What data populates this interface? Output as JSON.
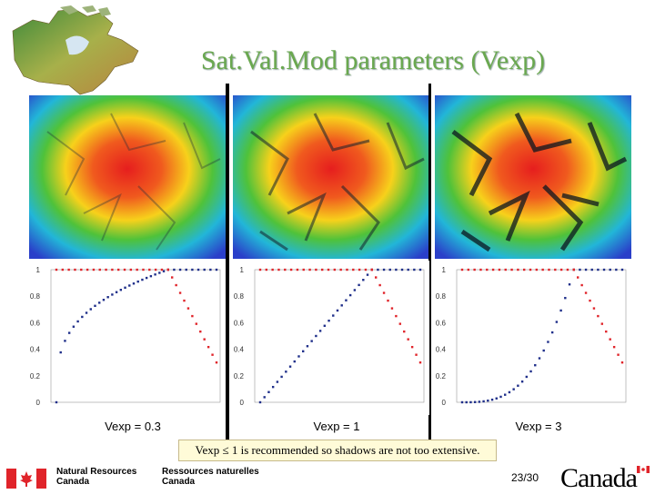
{
  "title": "Sat.Val.Mod parameters (Vexp)",
  "panels": [
    {
      "caption": "Vexp = 0.3",
      "vexp": 0.3
    },
    {
      "caption": "Vexp = 1",
      "vexp": 1
    },
    {
      "caption": "Vexp = 3",
      "vexp": 3
    }
  ],
  "note": "Vexp ≤ 1 is recommended so shadows are not too extensive.",
  "footer": {
    "org_en_1": "Natural Resources",
    "org_en_2": "Canada",
    "org_fr_1": "Ressources naturelles",
    "org_fr_2": "Canada",
    "page": "23/30",
    "wordmark": "Canada"
  },
  "colors": {
    "title": "#6aa84f",
    "series_rising": "#1f2f8a",
    "series_falling": "#e0242a",
    "note_bg": "#fffbd8"
  },
  "icons": [
    "canada-map-logo",
    "canada-flag-icon"
  ],
  "chart_data": [
    {
      "type": "scatter",
      "title": "",
      "ylim": [
        0,
        1
      ],
      "yticks": [
        "0",
        "0.2",
        "0.4",
        "0.6",
        "0.8",
        "1"
      ],
      "exponent": 0.3,
      "series": [
        {
          "points": "y = x^0.3, x from 0 to 1 (41 points)"
        },
        {
          "points": "y = 1 then linear drop from 1 to 0.3"
        }
      ]
    },
    {
      "type": "scatter",
      "title": "",
      "ylim": [
        0,
        1
      ],
      "yticks": [
        "0",
        "0.2",
        "0.4",
        "0.6",
        "0.8",
        "1"
      ],
      "exponent": 1,
      "series": [
        {
          "points": "y = x^1, x from 0 to 1 (41 points)"
        },
        {
          "points": "y = 1 then linear drop from 1 to 0.3"
        }
      ]
    },
    {
      "type": "scatter",
      "title": "",
      "ylim": [
        0,
        1
      ],
      "yticks": [
        "0",
        "0.2",
        "0.4",
        "0.6",
        "0.8",
        "1"
      ],
      "exponent": 3,
      "series": [
        {
          "points": "y = x^3, x from 0 to 1 (41 points)"
        },
        {
          "points": "y = 1 then linear drop from 1 to 0.3"
        }
      ]
    }
  ]
}
